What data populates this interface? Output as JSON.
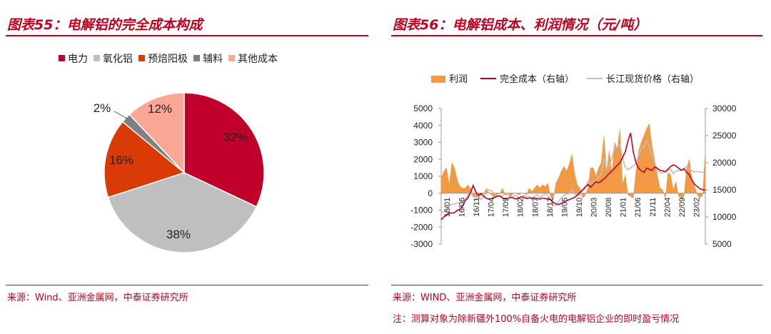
{
  "left": {
    "title": "图表55：电解铝的完全成本构成",
    "source": "来源：Wind、亚洲金属网，中泰证券研究所"
  },
  "right": {
    "title": "图表56：电解铝成本、利润情况（元/吨）",
    "source": "来源：WIND、亚洲金属网，中泰证券研究所",
    "note": "注：测算对象为除新疆外100%自备火电的电解铝企业的即时盈亏情况"
  },
  "colors": {
    "accent": "#c1001f",
    "electricity": "#c0002a",
    "alumina": "#bfbfbf",
    "anode": "#d93a06",
    "auxiliary": "#7f7f7f",
    "other": "#f8a795",
    "profit": "#f19a46",
    "full_cost": "#c0002a",
    "spot_price": "#bfbfbf"
  },
  "chart_data": [
    {
      "type": "pie",
      "title": "",
      "legend_position": "top",
      "slices": [
        {
          "label": "电力",
          "value": 32,
          "display": "32%"
        },
        {
          "label": "氧化铝",
          "value": 38,
          "display": "38%"
        },
        {
          "label": "预焙阳极",
          "value": 16,
          "display": "16%"
        },
        {
          "label": "辅料",
          "value": 2,
          "display": "2%"
        },
        {
          "label": "其他成本",
          "value": 12,
          "display": "12%"
        }
      ]
    },
    {
      "type": "bar+line",
      "title": "",
      "legend_position": "top",
      "x_ticks": [
        "16/01",
        "16/06",
        "16/11",
        "17/04",
        "17/09",
        "18/02",
        "18/07",
        "18/12",
        "19/05",
        "19/10",
        "20/03",
        "20/08",
        "21/01",
        "21/06",
        "21/11",
        "22/04",
        "22/09",
        "23/02"
      ],
      "y_left": {
        "min": -3000,
        "max": 5000,
        "ticks": [
          5000,
          4000,
          3000,
          2000,
          1000,
          0,
          -1000,
          -2000,
          -3000
        ]
      },
      "y_right": {
        "min": 5000,
        "max": 30000,
        "ticks": [
          30000,
          25000,
          20000,
          15000,
          10000,
          5000
        ]
      },
      "series": [
        {
          "name": "利润",
          "kind": "area",
          "axis": "left",
          "values": [
            900,
            1300,
            1500,
            500,
            1800,
            1500,
            800,
            400,
            300,
            300,
            500,
            300,
            -200,
            -200,
            -300,
            -100,
            0,
            300,
            0,
            -100,
            -300,
            -100,
            0,
            300,
            -100,
            0,
            -200,
            0,
            0,
            -100,
            0,
            0,
            -100,
            300,
            100,
            300,
            500,
            300,
            500,
            400,
            600,
            -200,
            -400,
            600,
            900,
            1300,
            1600,
            1300,
            1700,
            2300,
            1200,
            500,
            300,
            -300,
            -100,
            300,
            1500,
            1500,
            1000,
            1500,
            1800,
            3400,
            1300,
            2500,
            1200,
            3000,
            2600,
            3800,
            500,
            1100,
            -100,
            -200,
            -300,
            1300,
            2500,
            3000,
            3400,
            3800,
            4100,
            2800,
            2000,
            1100,
            300,
            200,
            -300,
            1200,
            1100,
            200,
            700,
            -200,
            -300,
            -200,
            1500,
            2000,
            800,
            400,
            -100,
            -300,
            -100,
            2500
          ]
        },
        {
          "name": "完全成本（右轴）",
          "kind": "line",
          "axis": "right",
          "values": [
            9500,
            10000,
            10300,
            10800,
            10700,
            10800,
            11200,
            11400,
            12000,
            13000,
            13500,
            14500,
            15800,
            14600,
            14000,
            14300,
            13800,
            13400,
            13300,
            13400,
            13600,
            13800,
            13900,
            13500,
            13300,
            13400,
            13600,
            13500,
            13300,
            13500,
            13700,
            13600,
            13400,
            13500,
            13400,
            13500,
            13400,
            13300,
            13500,
            13400,
            13300,
            13200,
            12700,
            12400,
            12300,
            12500,
            12700,
            13000,
            13200,
            13400,
            13600,
            14000,
            14500,
            15000,
            15500,
            16000,
            15500,
            16000,
            16500,
            16300,
            16600,
            17000,
            17500,
            18000,
            18500,
            19000,
            19500,
            20000,
            21000,
            22000,
            24000,
            25500,
            22000,
            20000,
            19000,
            18500,
            18200,
            19000,
            18800,
            18600,
            19200,
            19000,
            18600,
            18500,
            18300,
            18800,
            19300,
            19600,
            19400,
            19000,
            18600,
            18900,
            18200,
            17800,
            16800,
            16000,
            15600,
            15200,
            15000,
            15000
          ]
        },
        {
          "name": "长江现货价格（右轴）",
          "kind": "line",
          "axis": "right",
          "values": [
            10800,
            11000,
            11500,
            12000,
            12300,
            12400,
            12600,
            12500,
            12800,
            13200,
            14000,
            14600,
            13800,
            13300,
            13700,
            13200,
            13800,
            14500,
            15000,
            14800,
            14300,
            14000,
            13700,
            13900,
            14200,
            14000,
            13600,
            13800,
            14000,
            13500,
            13700,
            14000,
            13700,
            13800,
            13500,
            13800,
            14100,
            13600,
            14000,
            14200,
            13900,
            13300,
            12000,
            12200,
            12900,
            13500,
            14000,
            14200,
            14300,
            15100,
            14100,
            14200,
            14000,
            14800,
            15200,
            16600,
            16100,
            16400,
            16800,
            17300,
            17900,
            20800,
            18800,
            19400,
            20800,
            23000,
            22800,
            23300,
            21000,
            19200,
            18700,
            19000,
            19500,
            19800,
            21500,
            22500,
            23000,
            24000,
            23000,
            21500,
            20100,
            18700,
            18200,
            18100,
            18400,
            18600,
            18800,
            18000,
            18500,
            18500,
            18700,
            18900,
            19300,
            18800,
            18500,
            18300,
            18400,
            18300,
            18200,
            18400
          ]
        }
      ]
    }
  ]
}
